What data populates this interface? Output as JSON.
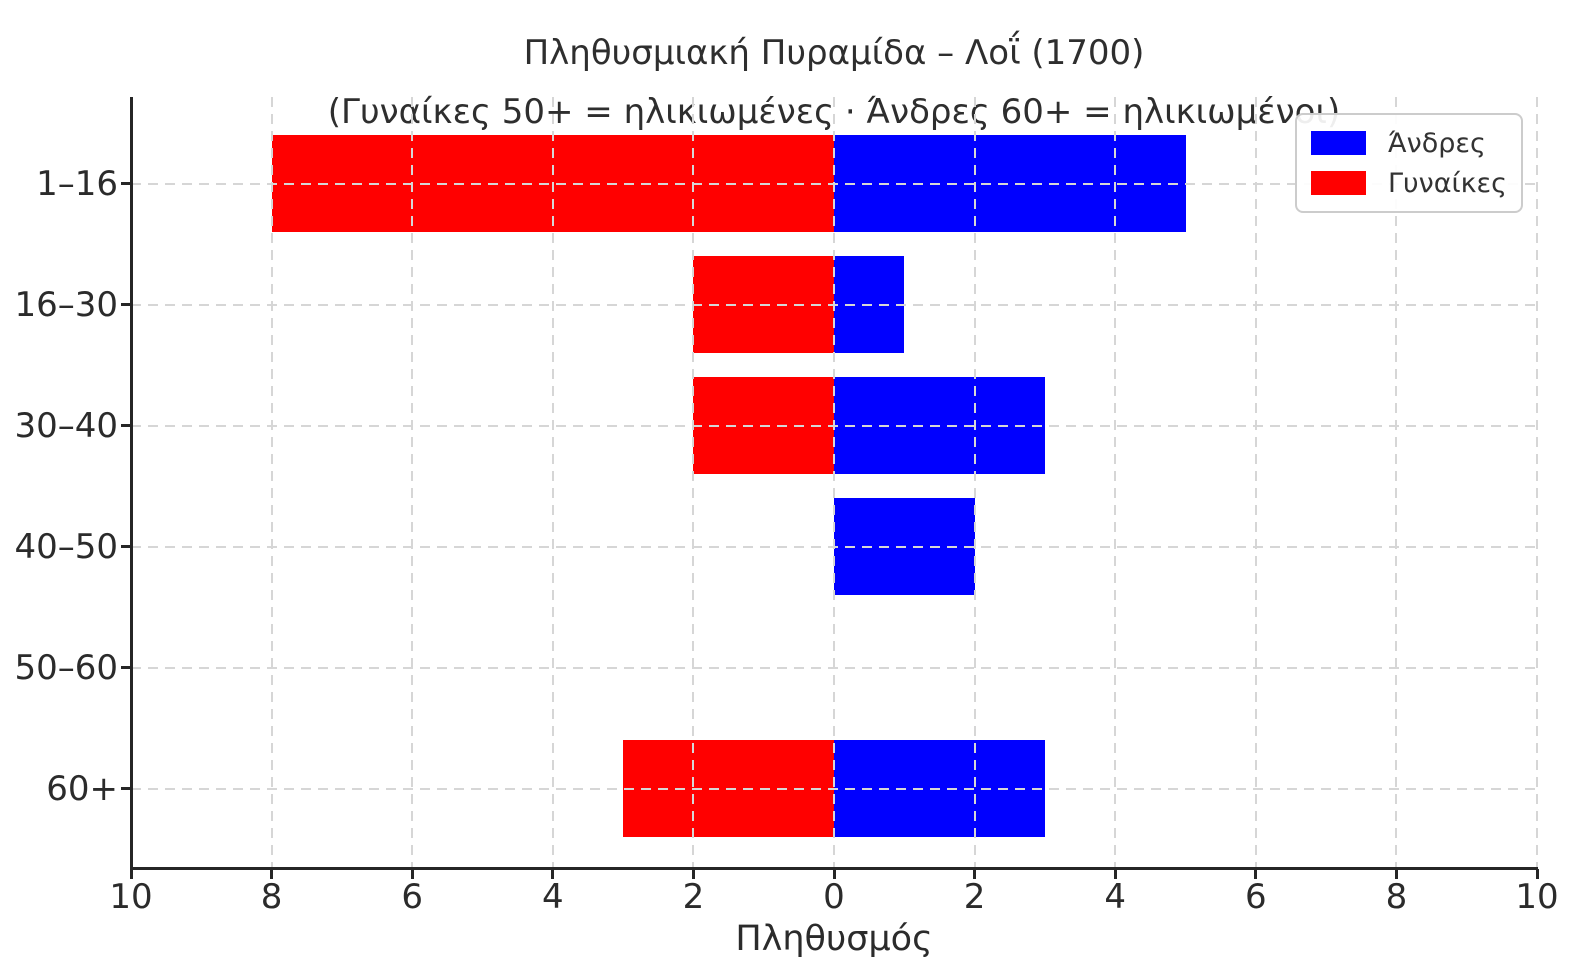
{
  "chart_data": {
    "type": "bar",
    "variant": "population-pyramid",
    "title": "Πληθυσμιακή Πυραμίδα – Λοΐ (1700)",
    "subtitle": "(Γυναίκες 50+ = ηλικιωμένες · Άνδρες 60+ = ηλικιωμένοι)",
    "xlabel": "Πληθυσμός",
    "categories": [
      "1–16",
      "16–30",
      "30–40",
      "40–50",
      "50–60",
      "60+"
    ],
    "series": [
      {
        "name": "Άνδρες",
        "side": "right",
        "color": "#0000ff",
        "values": [
          5,
          1,
          3,
          2,
          0,
          3
        ]
      },
      {
        "name": "Γυναίκες",
        "side": "left",
        "color": "#ff0000",
        "values": [
          8,
          2,
          2,
          0,
          0,
          3
        ]
      }
    ],
    "xlim": [
      -10,
      10
    ],
    "xticks": [
      -10,
      -8,
      -6,
      -4,
      -2,
      0,
      2,
      4,
      6,
      8,
      10
    ],
    "xtick_labels": [
      "10",
      "8",
      "6",
      "4",
      "2",
      "0",
      "2",
      "4",
      "6",
      "8",
      "10"
    ],
    "grid": true,
    "grid_style": "dashed",
    "gridline_color": "#d6d6d6",
    "spine_color": "#262626",
    "legend_position": "upper right"
  }
}
